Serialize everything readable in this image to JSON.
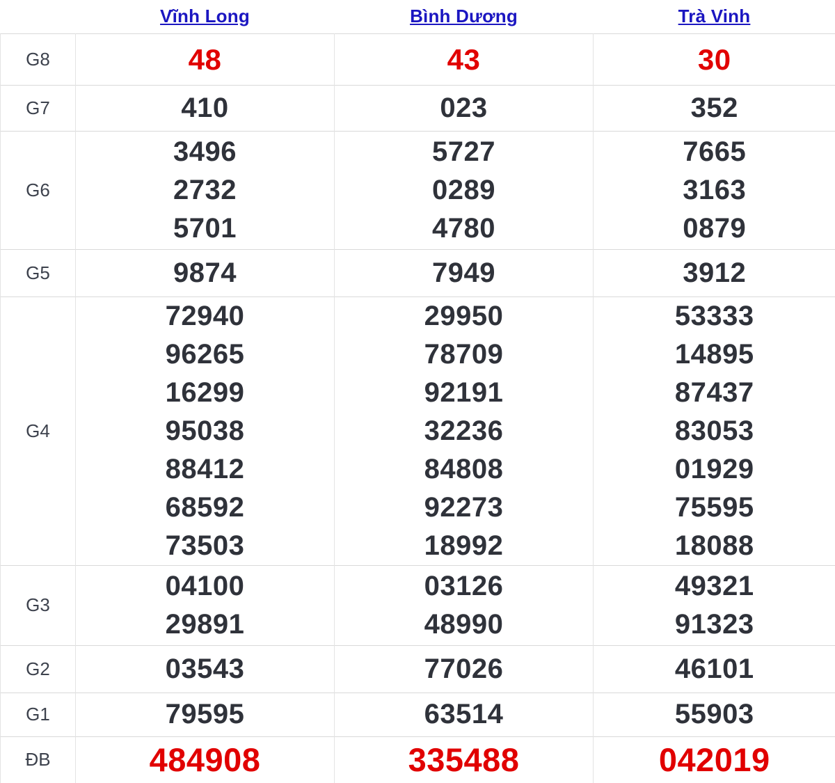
{
  "colors": {
    "accent_red": "#e10000",
    "link_blue": "#1b16c1",
    "number_dark": "#2f323a",
    "row_line": "#d9d9d9"
  },
  "table": {
    "headers": [
      {
        "label": "Vĩnh Long"
      },
      {
        "label": "Bình Dương"
      },
      {
        "label": "Trà Vinh"
      }
    ],
    "rows": [
      {
        "label": "G8",
        "style": "red",
        "cols": [
          [
            "48"
          ],
          [
            "43"
          ],
          [
            "30"
          ]
        ]
      },
      {
        "label": "G7",
        "style": "dark",
        "cols": [
          [
            "410"
          ],
          [
            "023"
          ],
          [
            "352"
          ]
        ]
      },
      {
        "label": "G6",
        "style": "dark",
        "cols": [
          [
            "3496",
            "2732",
            "5701"
          ],
          [
            "5727",
            "0289",
            "4780"
          ],
          [
            "7665",
            "3163",
            "0879"
          ]
        ]
      },
      {
        "label": "G5",
        "style": "dark",
        "cols": [
          [
            "9874"
          ],
          [
            "7949"
          ],
          [
            "3912"
          ]
        ]
      },
      {
        "label": "G4",
        "style": "dark",
        "cols": [
          [
            "72940",
            "96265",
            "16299",
            "95038",
            "88412",
            "68592",
            "73503"
          ],
          [
            "29950",
            "78709",
            "92191",
            "32236",
            "84808",
            "92273",
            "18992"
          ],
          [
            "53333",
            "14895",
            "87437",
            "83053",
            "01929",
            "75595",
            "18088"
          ]
        ]
      },
      {
        "label": "G3",
        "style": "dark",
        "cols": [
          [
            "04100",
            "29891"
          ],
          [
            "03126",
            "48990"
          ],
          [
            "49321",
            "91323"
          ]
        ]
      },
      {
        "label": "G2",
        "style": "dark",
        "cols": [
          [
            "03543"
          ],
          [
            "77026"
          ],
          [
            "46101"
          ]
        ]
      },
      {
        "label": "G1",
        "style": "dark",
        "cols": [
          [
            "79595"
          ],
          [
            "63514"
          ],
          [
            "55903"
          ]
        ]
      },
      {
        "label": "ĐB",
        "style": "special",
        "cols": [
          [
            "484908"
          ],
          [
            "335488"
          ],
          [
            "042019"
          ]
        ]
      }
    ]
  }
}
